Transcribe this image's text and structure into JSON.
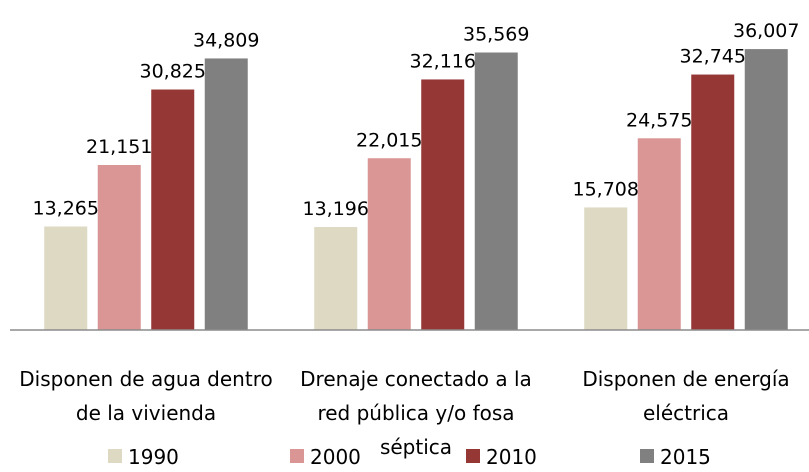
{
  "chart_data": {
    "type": "bar",
    "categories": [
      "Disponen de agua dentro de la vivienda",
      "Drenaje conectado a la red pública y/o fosa séptica",
      "Disponen de energía eléctrica"
    ],
    "series": [
      {
        "name": "1990",
        "color": "#ddd9c3",
        "values": [
          13265,
          13196,
          15708
        ],
        "value_labels": [
          "13,265",
          "13,196",
          "15,708"
        ]
      },
      {
        "name": "2000",
        "color": "#d99694",
        "values": [
          21151,
          22015,
          24575
        ],
        "value_labels": [
          "21,151",
          "22,015",
          "24,575"
        ]
      },
      {
        "name": "2010",
        "color": "#953735",
        "values": [
          30825,
          32116,
          32745
        ],
        "value_labels": [
          "30,825",
          "32,116",
          "32,745"
        ]
      },
      {
        "name": "2015",
        "color": "#808080",
        "values": [
          34809,
          35569,
          36007
        ],
        "value_labels": [
          "34,809",
          "35,569",
          "36,007"
        ]
      }
    ],
    "ylim": [
      0,
      42300
    ]
  }
}
